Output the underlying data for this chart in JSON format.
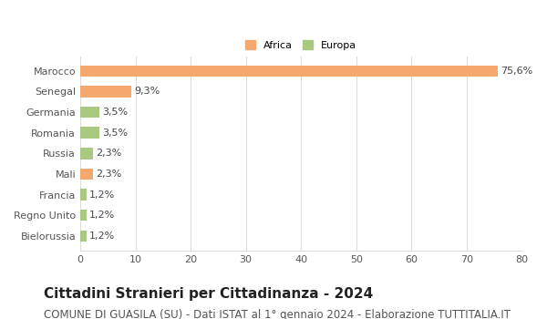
{
  "categories": [
    "Bielorussia",
    "Regno Unito",
    "Francia",
    "Mali",
    "Russia",
    "Romania",
    "Germania",
    "Senegal",
    "Marocco"
  ],
  "values": [
    1.2,
    1.2,
    1.2,
    2.3,
    2.3,
    3.5,
    3.5,
    9.3,
    75.6
  ],
  "labels": [
    "1,2%",
    "1,2%",
    "1,2%",
    "2,3%",
    "2,3%",
    "3,5%",
    "3,5%",
    "9,3%",
    "75,6%"
  ],
  "colors": [
    "#a8c97f",
    "#a8c97f",
    "#a8c97f",
    "#f5a96e",
    "#a8c97f",
    "#a8c97f",
    "#a8c97f",
    "#f5a96e",
    "#f5a96e"
  ],
  "legend_labels": [
    "Africa",
    "Europa"
  ],
  "legend_colors": [
    "#f5a96e",
    "#a8c97f"
  ],
  "title": "Cittadini Stranieri per Cittadinanza - 2024",
  "subtitle": "COMUNE DI GUASILA (SU) - Dati ISTAT al 1° gennaio 2024 - Elaborazione TUTTITALIA.IT",
  "xlim": [
    0,
    80
  ],
  "xticks": [
    0,
    10,
    20,
    30,
    40,
    50,
    60,
    70,
    80
  ],
  "bg_color": "#ffffff",
  "grid_color": "#dddddd",
  "bar_height": 0.55,
  "title_fontsize": 11,
  "subtitle_fontsize": 8.5,
  "label_fontsize": 8,
  "tick_fontsize": 8
}
